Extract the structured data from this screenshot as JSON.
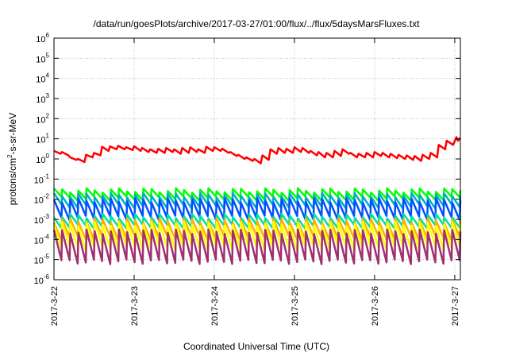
{
  "chart_data": {
    "type": "line",
    "title": "/data/run/goesPlots/archive/2017-03-27/01:00/flux/../flux/5daysMarsFluxes.txt",
    "xlabel": "Coordinated Universal Time (UTC)",
    "ylabel_base": "protons/cm",
    "ylabel_sup": "2",
    "ylabel_rest": "-s-sr-MeV",
    "yscale": "log",
    "ylim_exp": [
      -6,
      6
    ],
    "y_tick_exponents": [
      -6,
      -5,
      -4,
      -3,
      -2,
      -1,
      0,
      1,
      2,
      3,
      4,
      5,
      6
    ],
    "y_tick_base": "10",
    "xlim_days": [
      0,
      5.07
    ],
    "x_ticks": [
      {
        "label": "2017-3-22",
        "day": 0
      },
      {
        "label": "2017-3-23",
        "day": 1
      },
      {
        "label": "2017-3-24",
        "day": 2
      },
      {
        "label": "2017-3-25",
        "day": 3
      },
      {
        "label": "2017-3-26",
        "day": 4
      },
      {
        "label": "2017-3-27",
        "day": 5
      }
    ],
    "grid": true,
    "series": [
      {
        "color": "#ff0000",
        "width": 2.5,
        "x": [
          0.0,
          0.08,
          0.1,
          0.18,
          0.2,
          0.28,
          0.3,
          0.38,
          0.4,
          0.48,
          0.5,
          0.58,
          0.6,
          0.68,
          0.7,
          0.78,
          0.8,
          0.88,
          0.9,
          0.98,
          1.0,
          1.08,
          1.1,
          1.18,
          1.2,
          1.28,
          1.3,
          1.38,
          1.4,
          1.48,
          1.5,
          1.58,
          1.6,
          1.68,
          1.7,
          1.78,
          1.8,
          1.88,
          1.9,
          1.98,
          2.0,
          2.08,
          2.1,
          2.18,
          2.2,
          2.28,
          2.3,
          2.38,
          2.4,
          2.48,
          2.5,
          2.58,
          2.6,
          2.68,
          2.7,
          2.78,
          2.8,
          2.88,
          2.9,
          2.98,
          3.0,
          3.08,
          3.1,
          3.18,
          3.2,
          3.28,
          3.3,
          3.38,
          3.4,
          3.48,
          3.5,
          3.58,
          3.6,
          3.68,
          3.7,
          3.78,
          3.8,
          3.88,
          3.9,
          3.98,
          4.0,
          4.08,
          4.1,
          4.18,
          4.2,
          4.28,
          4.3,
          4.38,
          4.4,
          4.48,
          4.5,
          4.58,
          4.6,
          4.68,
          4.7,
          4.78,
          4.8,
          4.88,
          4.9,
          4.98,
          5.02,
          5.04,
          5.07
        ],
        "y": [
          2.5,
          1.8,
          2.2,
          1.5,
          1.2,
          0.9,
          1.0,
          0.7,
          1.6,
          1.2,
          2.0,
          1.5,
          4.0,
          2.5,
          4.2,
          3.0,
          4.5,
          3.0,
          3.8,
          2.8,
          4.3,
          2.5,
          3.5,
          2.2,
          3.0,
          2.0,
          3.2,
          2.0,
          3.5,
          2.2,
          3.0,
          1.8,
          3.5,
          2.0,
          3.8,
          2.2,
          3.0,
          2.0,
          4.0,
          2.5,
          3.8,
          2.5,
          3.2,
          2.0,
          2.2,
          1.4,
          1.6,
          1.0,
          1.2,
          0.8,
          1.0,
          0.6,
          1.5,
          0.9,
          3.0,
          1.8,
          3.5,
          2.0,
          3.2,
          2.0,
          3.8,
          2.2,
          3.5,
          2.0,
          2.5,
          1.5,
          2.2,
          1.2,
          2.0,
          1.2,
          2.5,
          1.4,
          3.0,
          1.8,
          2.0,
          1.2,
          1.8,
          1.2,
          2.0,
          1.2,
          2.2,
          1.4,
          2.0,
          1.2,
          1.8,
          1.1,
          1.6,
          1.0,
          1.5,
          0.9,
          1.4,
          0.8,
          1.6,
          1.0,
          2.0,
          1.2,
          5.0,
          3.0,
          8.0,
          5.0,
          12.0,
          8.0,
          11.0
        ]
      },
      {
        "color": "#00ff00",
        "width": 2.5,
        "periods": 50,
        "peak": 0.028,
        "trough": 0.011
      },
      {
        "color": "#00b0c0",
        "width": 2.5,
        "periods": 50,
        "peak": 0.016,
        "trough": 0.0045
      },
      {
        "color": "#0050ff",
        "width": 2.5,
        "periods": 50,
        "peak": 0.009,
        "trough": 0.0012
      },
      {
        "color": "#00e0a0",
        "width": 2.5,
        "periods": 50,
        "peak": 0.0015,
        "trough": 0.00045
      },
      {
        "color": "#ffb000",
        "width": 2.5,
        "periods": 50,
        "peak": 0.0009,
        "trough": 0.00012
      },
      {
        "color": "#ffff00",
        "width": 2.5,
        "periods": 50,
        "peak": 0.0006,
        "trough": 4e-05
      },
      {
        "color": "#a03070",
        "width": 2.5,
        "periods": 50,
        "peak": 0.00025,
        "trough": 8e-06
      }
    ]
  }
}
